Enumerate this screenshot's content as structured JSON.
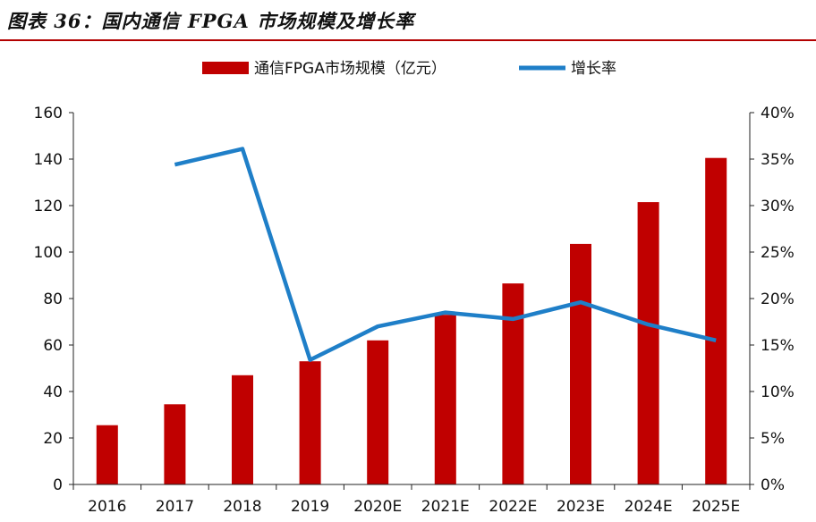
{
  "title": "图表 36：国内通信 FPGA 市场规模及增长率",
  "colors": {
    "bar": "#c00000",
    "line": "#1f7fc8",
    "rule": "#b30000",
    "axis": "#222222"
  },
  "chart_data": {
    "type": "bar",
    "categories": [
      "2016",
      "2017",
      "2018",
      "2019",
      "2020E",
      "2021E",
      "2022E",
      "2023E",
      "2024E",
      "2025E"
    ],
    "series": [
      {
        "name": "通信FPGA市场规模（亿元）",
        "type": "bar",
        "axis": "left",
        "values": [
          25.5,
          34.5,
          47,
          53,
          62,
          73,
          86.5,
          103.5,
          121.5,
          140.5
        ]
      },
      {
        "name": "增长率",
        "type": "line",
        "axis": "right",
        "values": [
          null,
          34.4,
          36.1,
          13.4,
          17.0,
          18.5,
          17.8,
          19.6,
          17.2,
          15.5
        ]
      }
    ],
    "y_left": {
      "min": 0,
      "max": 160,
      "ticks": [
        "0",
        "20",
        "40",
        "60",
        "80",
        "100",
        "120",
        "140",
        "160"
      ]
    },
    "y_right": {
      "min": 0,
      "max": 40,
      "ticks": [
        "0%",
        "5%",
        "10%",
        "15%",
        "20%",
        "25%",
        "30%",
        "35%",
        "40%"
      ]
    },
    "legend": "top-center",
    "grid": false
  }
}
